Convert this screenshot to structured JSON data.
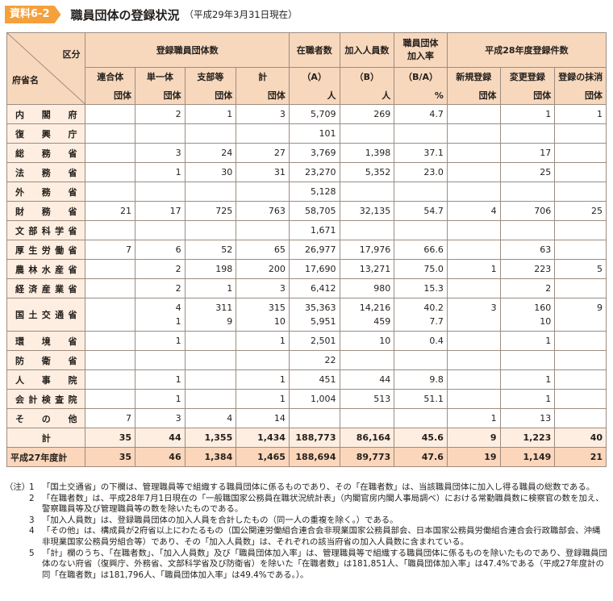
{
  "header": {
    "badge": "資料6-2",
    "title": "職員団体の登録状況",
    "subtitle": "（平成29年3月31日現在）"
  },
  "table": {
    "corner": {
      "top": "区分",
      "bottom": "府省名"
    },
    "groups": {
      "registered": "登録職員団体数",
      "staff": "在職者数",
      "members": "加入人員数",
      "rate": [
        "職員団体",
        "加入率"
      ],
      "h28": "平成28年度登録件数"
    },
    "subheaders": {
      "rengo": [
        "連合体",
        "団体"
      ],
      "tanitsu": [
        "単一体",
        "団体"
      ],
      "shibu": [
        "支部等",
        "団体"
      ],
      "kei": [
        "計",
        "団体"
      ],
      "staff": [
        "（A）",
        "人"
      ],
      "members": [
        "（B）",
        "人"
      ],
      "rate": [
        "（B/A）",
        "%"
      ],
      "new": [
        "新規登録",
        "団体"
      ],
      "change": [
        "変更登録",
        "団体"
      ],
      "delete": [
        "登録の抹消",
        "団体"
      ]
    },
    "rows": [
      {
        "name": "内閣府",
        "c": [
          "",
          "2",
          "1",
          "3",
          "5,709",
          "269",
          "4.7",
          "",
          "1",
          "1"
        ]
      },
      {
        "name": "復興庁",
        "c": [
          "",
          "",
          "",
          "",
          "101",
          "",
          "",
          "",
          "",
          ""
        ]
      },
      {
        "name": "総務省",
        "c": [
          "",
          "3",
          "24",
          "27",
          "3,769",
          "1,398",
          "37.1",
          "",
          "17",
          ""
        ]
      },
      {
        "name": "法務省",
        "c": [
          "",
          "1",
          "30",
          "31",
          "23,270",
          "5,352",
          "23.0",
          "",
          "25",
          ""
        ]
      },
      {
        "name": "外務省",
        "c": [
          "",
          "",
          "",
          "",
          "5,128",
          "",
          "",
          "",
          "",
          ""
        ]
      },
      {
        "name": "財務省",
        "c": [
          "21",
          "17",
          "725",
          "763",
          "58,705",
          "32,135",
          "54.7",
          "4",
          "706",
          "25"
        ]
      },
      {
        "name": "文部科学省",
        "c": [
          "",
          "",
          "",
          "",
          "1,671",
          "",
          "",
          "",
          "",
          ""
        ]
      },
      {
        "name": "厚生労働省",
        "c": [
          "7",
          "6",
          "52",
          "65",
          "26,977",
          "17,976",
          "66.6",
          "",
          "63",
          ""
        ]
      },
      {
        "name": "農林水産省",
        "c": [
          "",
          "2",
          "198",
          "200",
          "17,690",
          "13,271",
          "75.0",
          "1",
          "223",
          "5"
        ]
      },
      {
        "name": "経済産業省",
        "c": [
          "",
          "2",
          "1",
          "3",
          "6,412",
          "980",
          "15.3",
          "",
          "2",
          ""
        ]
      }
    ],
    "kokudo": {
      "name": "国土交通省",
      "line1": [
        "",
        "4",
        "311",
        "315",
        "35,363",
        "14,216",
        "40.2",
        "3",
        "160",
        "9"
      ],
      "line2": [
        "",
        "1",
        "9",
        "10",
        "5,951",
        "459",
        "7.7",
        "",
        "10",
        ""
      ]
    },
    "rows2": [
      {
        "name": "環境省",
        "c": [
          "",
          "1",
          "",
          "1",
          "2,501",
          "10",
          "0.4",
          "",
          "1",
          ""
        ]
      },
      {
        "name": "防衛省",
        "c": [
          "",
          "",
          "",
          "",
          "22",
          "",
          "",
          "",
          "",
          ""
        ]
      },
      {
        "name": "人事院",
        "c": [
          "",
          "1",
          "",
          "1",
          "451",
          "44",
          "9.8",
          "",
          "1",
          ""
        ]
      },
      {
        "name": "会計検査院",
        "c": [
          "",
          "1",
          "",
          "1",
          "1,004",
          "513",
          "51.1",
          "",
          "1",
          ""
        ]
      },
      {
        "name": "その他",
        "c": [
          "7",
          "3",
          "4",
          "14",
          "",
          "",
          "",
          "1",
          "13",
          ""
        ]
      }
    ],
    "total": {
      "name": "計",
      "c": [
        "35",
        "44",
        "1,355",
        "1,434",
        "188,773",
        "86,164",
        "45.6",
        "9",
        "1,223",
        "40"
      ]
    },
    "prev": {
      "name": "平成27年度計",
      "c": [
        "35",
        "46",
        "1,384",
        "1,465",
        "188,694",
        "89,773",
        "47.6",
        "19",
        "1,149",
        "21"
      ]
    }
  },
  "notes": {
    "prefix": "（注）",
    "items": [
      {
        "num": "1",
        "text": "「国土交通省」の下欄は、管理職員等で組織する職員団体に係るものであり、その「在職者数」は、当該職員団体に加入し得る職員の総数である。"
      },
      {
        "num": "2",
        "text": "「在職者数」は、平成28年7月1日現在の「一般職国家公務員在職状況統計表」（内閣官房内閣人事局調べ）における常勤職員数に検察官の数を加え、警察職員等及び管理職員等の数を除いたものである。"
      },
      {
        "num": "3",
        "text": "「加入人員数」は、登録職員団体の加入人員を合計したもの（同一人の重複を除く。）である。"
      },
      {
        "num": "4",
        "text": "「その他」は、構成員が2府省以上にわたるもの（国公関連労働組合連合会非現業国家公務員部会、日本国家公務員労働組合連合会行政職部会、沖縄非現業国家公務員労組合等）であり、その「加入人員数」は、それぞれの該当府省の加入人員数に含まれている。"
      },
      {
        "num": "5",
        "text": "「計」欄のうち、「在職者数」、「加入人員数」及び「職員団体加入率」は、管理職員等で組織する職員団体に係るものを除いたものであり、登録職員団体のない府省（復興庁、外務省、文部科学省及び防衛省）を除いた「在職者数」は181,851人、「職員団体加入率」は47.4%である（平成27年度計の同「在職者数」は181,796人、「職員団体加入率」は49.4%である。）。"
      }
    ]
  }
}
